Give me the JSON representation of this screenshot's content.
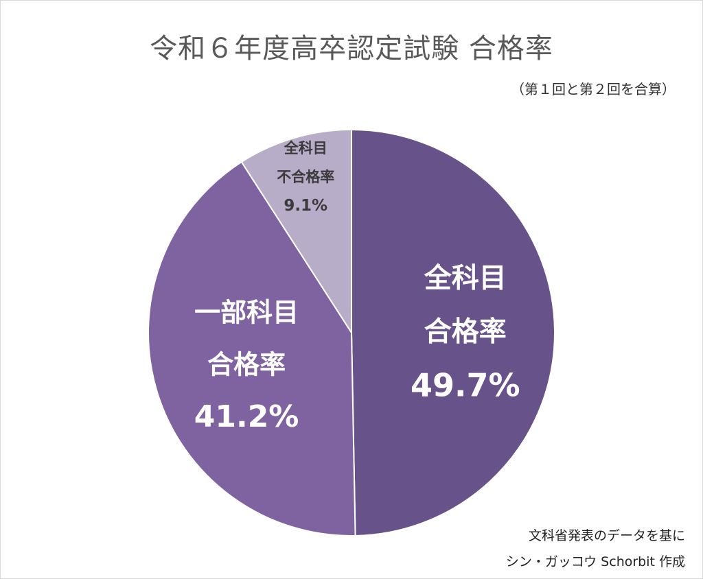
{
  "chart_data": {
    "type": "pie",
    "title": "令和６年度高卒認定試験 合格率",
    "subtitle": "（第１回と第２回を合算）",
    "unit": "%",
    "slices": [
      {
        "label_lines": [
          "全科目",
          "合格率"
        ],
        "value": 49.7,
        "value_label": "49.7%",
        "color": "#68528a"
      },
      {
        "label_lines": [
          "一部科目",
          "合格率"
        ],
        "value": 41.2,
        "value_label": "41.2%",
        "color": "#7f63a1"
      },
      {
        "label_lines": [
          "全科目",
          "不合格率"
        ],
        "value": 9.1,
        "value_label": "9.1%",
        "color": "#b8adc9"
      }
    ]
  },
  "source": {
    "line1": "文科省発表のデータを基に",
    "line2": "シン・ガッコウ Schorbit 作成"
  }
}
